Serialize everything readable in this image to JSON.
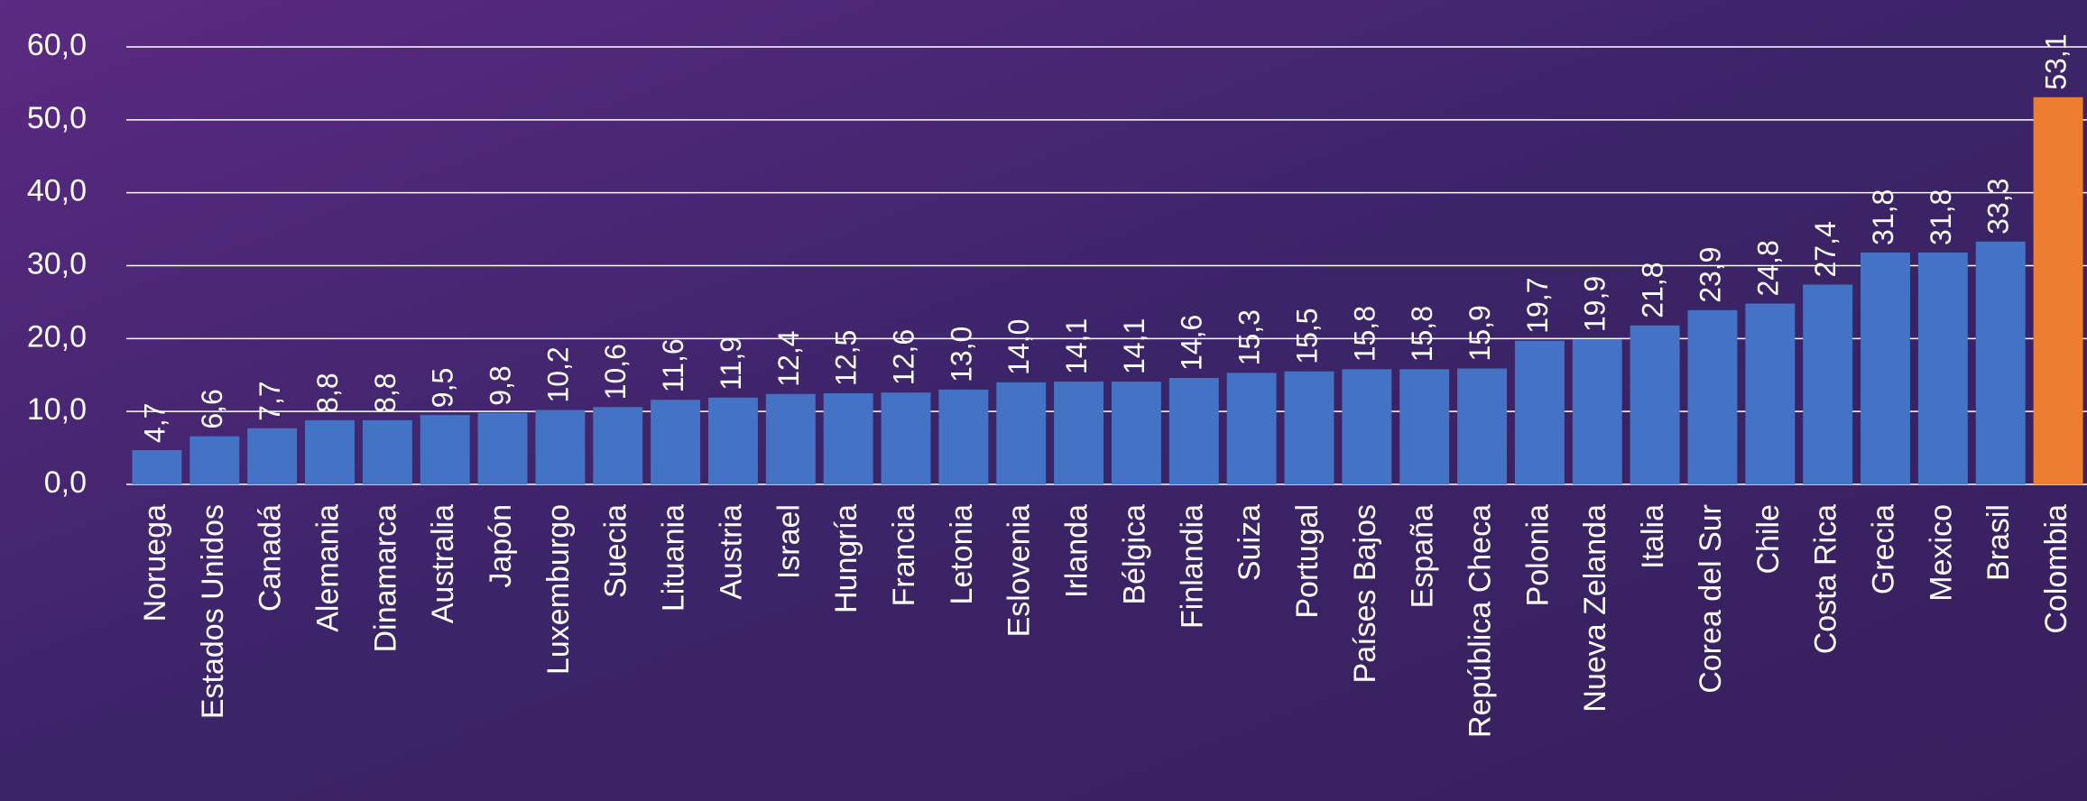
{
  "chart_data": {
    "type": "bar",
    "categories": [
      "Noruega",
      "Estados Unidos",
      "Canadá",
      "Alemania",
      "Dinamarca",
      "Australia",
      "Japón",
      "Luxemburgo",
      "Suecia",
      "Lituania",
      "Austria",
      "Israel",
      "Hungría",
      "Francia",
      "Letonia",
      "Eslovenia",
      "Irlanda",
      "Bélgica",
      "Finlandia",
      "Suiza",
      "Portugal",
      "Países Bajos",
      "España",
      "República Checa",
      "Polonia",
      "Nueva Zelanda",
      "Italia",
      "Corea del Sur",
      "Chile",
      "Costa Rica",
      "Grecia",
      "Mexico",
      "Brasil",
      "Colombia"
    ],
    "values": [
      4.7,
      6.6,
      7.7,
      8.8,
      8.8,
      9.5,
      9.8,
      10.2,
      10.6,
      11.6,
      11.9,
      12.4,
      12.5,
      12.6,
      13.0,
      14.0,
      14.1,
      14.1,
      14.6,
      15.3,
      15.5,
      15.8,
      15.8,
      15.9,
      19.7,
      19.9,
      21.8,
      23.9,
      24.8,
      27.4,
      31.8,
      31.8,
      33.3,
      53.1
    ],
    "value_labels": [
      "4,7",
      "6,6",
      "7,7",
      "8,8",
      "8,8",
      "9,5",
      "9,8",
      "10,2",
      "10,6",
      "11,6",
      "11,9",
      "12,4",
      "12,5",
      "12,6",
      "13,0",
      "14,0",
      "14,1",
      "14,1",
      "14,6",
      "15,3",
      "15,5",
      "15,8",
      "15,8",
      "15,9",
      "19,7",
      "19,9",
      "21,8",
      "23,9",
      "24,8",
      "27,4",
      "31,8",
      "31,8",
      "33,3",
      "53,1"
    ],
    "colors": [
      "#4472c4",
      "#4472c4",
      "#4472c4",
      "#4472c4",
      "#4472c4",
      "#4472c4",
      "#4472c4",
      "#4472c4",
      "#4472c4",
      "#4472c4",
      "#4472c4",
      "#4472c4",
      "#4472c4",
      "#4472c4",
      "#4472c4",
      "#4472c4",
      "#4472c4",
      "#4472c4",
      "#4472c4",
      "#4472c4",
      "#4472c4",
      "#4472c4",
      "#4472c4",
      "#4472c4",
      "#4472c4",
      "#4472c4",
      "#4472c4",
      "#4472c4",
      "#4472c4",
      "#4472c4",
      "#4472c4",
      "#4472c4",
      "#4472c4",
      "#ed7d31"
    ],
    "ylim": [
      0,
      60
    ],
    "yticks": [
      {
        "value": 0,
        "label": "0,0"
      },
      {
        "value": 10,
        "label": "10,0"
      },
      {
        "value": 20,
        "label": "20,0"
      },
      {
        "value": 30,
        "label": "30,0"
      },
      {
        "value": 40,
        "label": "40,0"
      },
      {
        "value": 50,
        "label": "50,0"
      },
      {
        "value": 60,
        "label": "60,0"
      }
    ],
    "grid": true
  }
}
